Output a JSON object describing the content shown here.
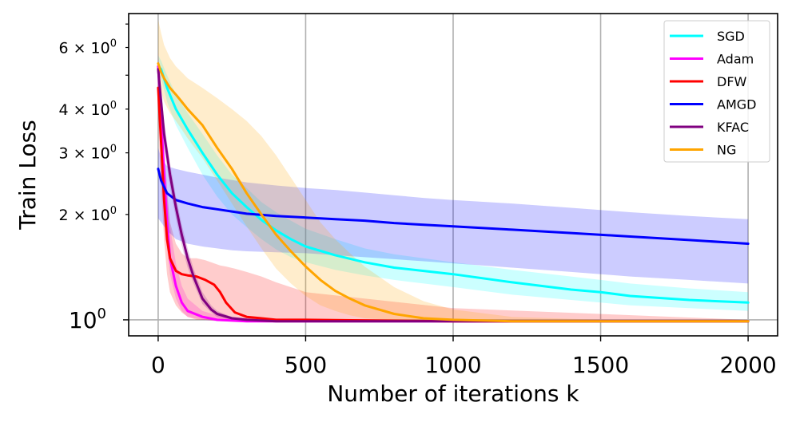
{
  "chart_data": {
    "type": "line",
    "title": "",
    "xlabel": "Number of iterations k",
    "ylabel": "Train Loss",
    "xscale": "linear",
    "yscale": "log",
    "xlim": [
      -100,
      2100
    ],
    "ylim": [
      0.9,
      7.5
    ],
    "grid": true,
    "legend_position": "top-right",
    "x_ticks": [
      {
        "value": 0,
        "label": "0"
      },
      {
        "value": 500,
        "label": "500"
      },
      {
        "value": 1000,
        "label": "1000"
      },
      {
        "value": 1500,
        "label": "1500"
      },
      {
        "value": 2000,
        "label": "2000"
      }
    ],
    "y_major_ticks": [
      {
        "value": 1,
        "base": "10",
        "exp": "0"
      }
    ],
    "y_minor_ticks": [
      {
        "value": 2,
        "mult": "2",
        "base": "10",
        "exp": "0"
      },
      {
        "value": 3,
        "mult": "3",
        "base": "10",
        "exp": "0"
      },
      {
        "value": 4,
        "mult": "4",
        "base": "10",
        "exp": "0"
      },
      {
        "value": 6,
        "mult": "6",
        "base": "10",
        "exp": "0"
      }
    ],
    "y_unlabeled_minor_ticks": [
      5,
      7
    ],
    "times_symbol": "×",
    "series": [
      {
        "name": "SGD",
        "color": "#00ffff",
        "x": [
          0,
          10,
          30,
          60,
          100,
          150,
          200,
          250,
          300,
          350,
          400,
          450,
          500,
          600,
          700,
          800,
          900,
          1000,
          1200,
          1400,
          1500,
          1600,
          1800,
          2000
        ],
        "y": [
          5.3,
          5.2,
          4.6,
          4.0,
          3.5,
          3.0,
          2.6,
          2.3,
          2.1,
          1.93,
          1.8,
          1.7,
          1.62,
          1.53,
          1.46,
          1.41,
          1.38,
          1.35,
          1.28,
          1.22,
          1.2,
          1.17,
          1.14,
          1.12
        ],
        "lower": [
          5.0,
          4.9,
          4.2,
          3.6,
          3.1,
          2.6,
          2.25,
          2.0,
          1.84,
          1.7,
          1.59,
          1.51,
          1.46,
          1.39,
          1.34,
          1.3,
          1.27,
          1.24,
          1.18,
          1.14,
          1.12,
          1.1,
          1.08,
          1.06
        ],
        "upper": [
          5.7,
          5.5,
          5.0,
          4.4,
          3.9,
          3.4,
          2.95,
          2.6,
          2.38,
          2.17,
          2.03,
          1.92,
          1.82,
          1.7,
          1.6,
          1.54,
          1.5,
          1.46,
          1.39,
          1.33,
          1.3,
          1.27,
          1.23,
          1.2
        ]
      },
      {
        "name": "Adam",
        "color": "#ff00ff",
        "x": [
          0,
          10,
          20,
          30,
          40,
          60,
          80,
          100,
          150,
          200,
          300,
          500,
          1000,
          2000
        ],
        "y": [
          5.3,
          3.8,
          2.6,
          1.9,
          1.5,
          1.25,
          1.12,
          1.06,
          1.02,
          1.0,
          0.99,
          0.99,
          0.99,
          0.99
        ],
        "lower": [
          4.8,
          3.2,
          2.2,
          1.6,
          1.35,
          1.15,
          1.06,
          1.02,
          1.0,
          0.99,
          0.985,
          0.985,
          0.985,
          0.985
        ],
        "upper": [
          5.8,
          4.5,
          3.2,
          2.4,
          1.85,
          1.45,
          1.25,
          1.15,
          1.06,
          1.03,
          1.0,
          0.995,
          0.995,
          0.995
        ]
      },
      {
        "name": "DFW",
        "color": "#ff0000",
        "x": [
          0,
          10,
          20,
          30,
          40,
          60,
          80,
          100,
          130,
          160,
          190,
          210,
          230,
          260,
          300,
          350,
          400,
          500,
          1000,
          2000
        ],
        "y": [
          4.6,
          3.2,
          2.2,
          1.7,
          1.5,
          1.38,
          1.35,
          1.34,
          1.33,
          1.3,
          1.26,
          1.2,
          1.12,
          1.05,
          1.02,
          1.01,
          1.0,
          1.0,
          0.99,
          0.99
        ],
        "lower": [
          3.6,
          2.4,
          1.7,
          1.35,
          1.2,
          1.1,
          1.05,
          1.02,
          1.0,
          1.0,
          0.995,
          0.995,
          0.995,
          0.99,
          0.99,
          0.99,
          0.99,
          0.99,
          0.985,
          0.985
        ],
        "upper": [
          5.2,
          4.2,
          3.0,
          2.3,
          1.9,
          1.65,
          1.55,
          1.5,
          1.5,
          1.48,
          1.45,
          1.43,
          1.42,
          1.4,
          1.37,
          1.33,
          1.28,
          1.2,
          1.08,
          1.0
        ]
      },
      {
        "name": "AMGD",
        "color": "#0000ff",
        "x": [
          0,
          10,
          30,
          60,
          100,
          150,
          200,
          250,
          300,
          400,
          500,
          600,
          700,
          800,
          900,
          1000,
          1200,
          1400,
          1600,
          1800,
          2000
        ],
        "y": [
          2.7,
          2.5,
          2.3,
          2.2,
          2.15,
          2.1,
          2.07,
          2.04,
          2.01,
          1.98,
          1.96,
          1.94,
          1.92,
          1.89,
          1.87,
          1.85,
          1.81,
          1.77,
          1.73,
          1.69,
          1.65
        ],
        "lower": [
          1.95,
          1.9,
          1.8,
          1.7,
          1.65,
          1.62,
          1.6,
          1.58,
          1.57,
          1.56,
          1.55,
          1.53,
          1.51,
          1.49,
          1.47,
          1.45,
          1.41,
          1.37,
          1.33,
          1.3,
          1.27
        ],
        "upper": [
          3.1,
          2.9,
          2.75,
          2.7,
          2.65,
          2.6,
          2.55,
          2.51,
          2.47,
          2.42,
          2.38,
          2.35,
          2.31,
          2.27,
          2.23,
          2.2,
          2.15,
          2.09,
          2.03,
          1.98,
          1.94
        ]
      },
      {
        "name": "KFAC",
        "color": "#800080",
        "x": [
          0,
          10,
          20,
          40,
          60,
          80,
          100,
          120,
          150,
          180,
          200,
          250,
          300,
          400,
          500,
          1000,
          2000
        ],
        "y": [
          5.2,
          4.2,
          3.4,
          2.6,
          2.1,
          1.75,
          1.5,
          1.33,
          1.15,
          1.07,
          1.04,
          1.01,
          1.0,
          0.99,
          0.99,
          0.99,
          0.99
        ],
        "lower": [
          4.9,
          3.9,
          3.1,
          2.4,
          1.95,
          1.63,
          1.41,
          1.27,
          1.11,
          1.05,
          1.02,
          1.0,
          0.99,
          0.985,
          0.985,
          0.985,
          0.985
        ],
        "upper": [
          5.5,
          4.5,
          3.7,
          2.8,
          2.25,
          1.87,
          1.6,
          1.4,
          1.2,
          1.1,
          1.06,
          1.02,
          1.01,
          1.0,
          0.995,
          0.995,
          0.995
        ]
      },
      {
        "name": "NG",
        "color": "#ffa500",
        "x": [
          0,
          10,
          20,
          40,
          60,
          80,
          100,
          150,
          200,
          250,
          300,
          350,
          400,
          450,
          500,
          550,
          600,
          650,
          700,
          800,
          900,
          1000,
          1200,
          1500,
          2000
        ],
        "y": [
          5.4,
          5.1,
          4.9,
          4.6,
          4.4,
          4.2,
          4.0,
          3.6,
          3.1,
          2.7,
          2.3,
          2.0,
          1.75,
          1.57,
          1.42,
          1.3,
          1.21,
          1.15,
          1.1,
          1.04,
          1.01,
          1.0,
          0.99,
          0.99,
          0.99
        ],
        "lower": [
          4.8,
          4.5,
          4.2,
          3.9,
          3.7,
          3.5,
          3.3,
          2.9,
          2.5,
          2.15,
          1.85,
          1.6,
          1.4,
          1.27,
          1.17,
          1.1,
          1.06,
          1.03,
          1.01,
          1.0,
          0.99,
          0.99,
          0.985,
          0.985,
          0.985
        ],
        "upper": [
          7.2,
          6.6,
          6.1,
          5.6,
          5.3,
          5.1,
          4.9,
          4.6,
          4.3,
          4.0,
          3.7,
          3.35,
          2.95,
          2.55,
          2.2,
          1.9,
          1.7,
          1.55,
          1.42,
          1.24,
          1.13,
          1.07,
          1.02,
          1.0,
          0.995
        ]
      }
    ]
  }
}
